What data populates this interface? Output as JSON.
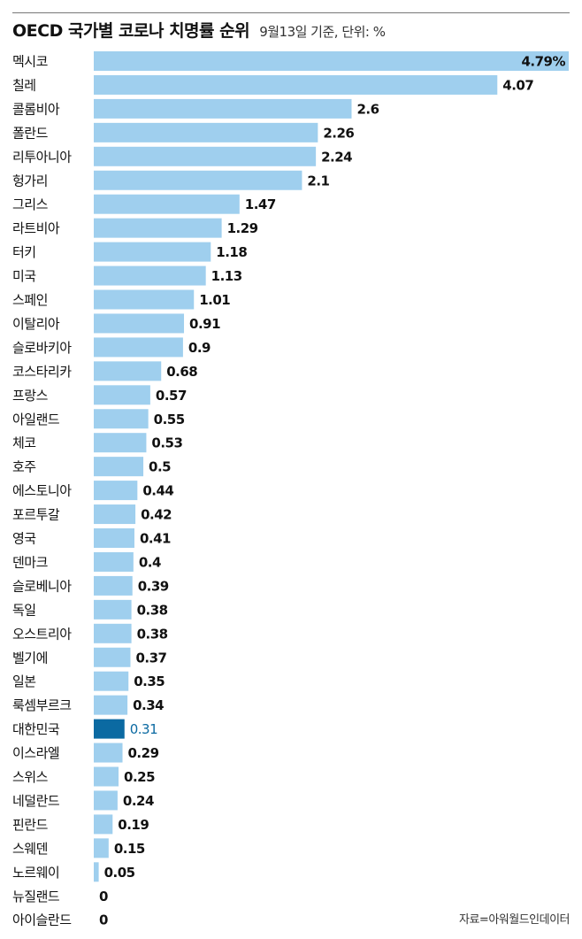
{
  "header": {
    "title": "OECD 국가별 코로나 치명률 순위",
    "subtitle": "9월13일 기준, 단위: %"
  },
  "source": "자료=아워월드인데이터",
  "colors": {
    "bar": "#9fcfee",
    "highlight": "#0b6aa2",
    "label": "#111111",
    "highlight_label": "#0b6aa2"
  },
  "chart_data": {
    "type": "bar",
    "orientation": "horizontal",
    "title": "OECD 국가별 코로나 치명률 순위",
    "subtitle": "9월13일 기준, 단위: %",
    "unit": "%",
    "highlight": "대한민국",
    "categories": [
      "멕시코",
      "칠레",
      "콜롬비아",
      "폴란드",
      "리투아니아",
      "헝가리",
      "그리스",
      "라트비아",
      "터키",
      "미국",
      "스페인",
      "이탈리아",
      "슬로바키아",
      "코스타리카",
      "프랑스",
      "아일랜드",
      "체코",
      "호주",
      "에스토니아",
      "포르투갈",
      "영국",
      "덴마크",
      "슬로베니아",
      "독일",
      "오스트리아",
      "벨기에",
      "일본",
      "룩셈부르크",
      "대한민국",
      "이스라엘",
      "스위스",
      "네덜란드",
      "핀란드",
      "스웨덴",
      "노르웨이",
      "뉴질랜드",
      "아이슬란드"
    ],
    "values": [
      4.79,
      4.07,
      2.6,
      2.26,
      2.24,
      2.1,
      1.47,
      1.29,
      1.18,
      1.13,
      1.01,
      0.91,
      0.9,
      0.68,
      0.57,
      0.55,
      0.53,
      0.5,
      0.44,
      0.42,
      0.41,
      0.4,
      0.39,
      0.38,
      0.38,
      0.37,
      0.35,
      0.34,
      0.31,
      0.29,
      0.25,
      0.24,
      0.19,
      0.15,
      0.05,
      0,
      0
    ],
    "value_labels": [
      "4.79%",
      "4.07",
      "2.6",
      "2.26",
      "2.24",
      "2.1",
      "1.47",
      "1.29",
      "1.18",
      "1.13",
      "1.01",
      "0.91",
      "0.9",
      "0.68",
      "0.57",
      "0.55",
      "0.53",
      "0.5",
      "0.44",
      "0.42",
      "0.41",
      "0.4",
      "0.39",
      "0.38",
      "0.38",
      "0.37",
      "0.35",
      "0.34",
      "0.31",
      "0.29",
      "0.25",
      "0.24",
      "0.19",
      "0.15",
      "0.05",
      "0",
      "0"
    ],
    "xlim": [
      0,
      4.79
    ],
    "grid": false,
    "legend": "none"
  }
}
